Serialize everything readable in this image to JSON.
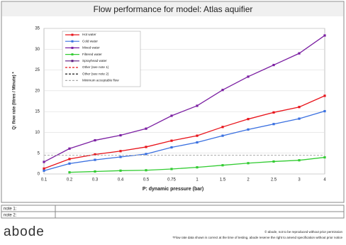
{
  "chart_data": {
    "type": "line",
    "title": "Flow performance for model: Atlas aquifier",
    "x_label": "P: dynamic pressure (bar)",
    "y_label": "Q: flow rate (litres  / Minute) *",
    "categories": [
      "0.1",
      "0.2",
      "0.3",
      "0.4",
      "0.5",
      "0.75",
      "1",
      "1.5",
      "2",
      "2.5",
      "3",
      "4"
    ],
    "ylim": [
      0,
      35
    ],
    "yticks": [
      0,
      5,
      10,
      15,
      20,
      25,
      30,
      35
    ],
    "grid": true,
    "series": [
      {
        "name": "Hot water",
        "color": "#e8141b",
        "values": [
          1.3,
          3.6,
          4.7,
          5.5,
          6.5,
          8,
          9.2,
          11.3,
          13.2,
          14.8,
          16.1,
          18.8
        ]
      },
      {
        "name": "Cold water",
        "color": "#3a70e0",
        "values": [
          0.8,
          2.5,
          3.4,
          4.1,
          4.8,
          6.4,
          7.6,
          9.2,
          10.7,
          12,
          13.3,
          15.1
        ]
      },
      {
        "name": "Mixed water",
        "color": "#7b1fa2",
        "values": [
          2.9,
          6.1,
          8.1,
          9.3,
          10.9,
          14,
          16.4,
          20.2,
          23.4,
          26.2,
          29,
          33.3
        ]
      },
      {
        "name": "Filtered water",
        "color": "#33cc33",
        "values": [
          null,
          0.4,
          0.6,
          0.8,
          0.9,
          1.2,
          1.6,
          2.1,
          2.6,
          3,
          3.3,
          4
        ]
      },
      {
        "name": "Sprayhead water",
        "color": "#5b1a80"
      },
      {
        "name": "Other (see note 1)",
        "color": "#e8141b",
        "dashed": true
      },
      {
        "name": "Other (see note 2)",
        "color": "#000000",
        "dashed": true
      },
      {
        "name": "Minimum acceptable flow",
        "color": "#aaaaaa",
        "dashed": true,
        "values": [
          4.5,
          4.5,
          4.5,
          4.5,
          4.5,
          4.5,
          4.5,
          4.5,
          4.5,
          4.5,
          4.5,
          4.5
        ]
      }
    ]
  },
  "notes": [
    "note 1:",
    "note 2:"
  ],
  "logo": "abode",
  "footer": [
    "© abode, not to be reproduced without prior permission",
    "*Flow rate data shown is correct at the time of testing, abode reserve the right to amend specification without prior notice"
  ]
}
